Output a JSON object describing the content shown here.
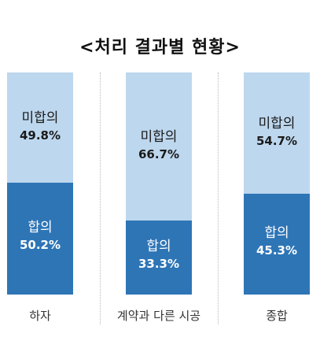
{
  "chart_data": {
    "type": "bar",
    "stacked": true,
    "percent_stacked": true,
    "title": "<처리 결과별 현황>",
    "categories": [
      "하자",
      "계약과 다른 시공",
      "종합"
    ],
    "series": [
      {
        "name": "합의",
        "values": [
          50.2,
          33.3,
          45.3
        ],
        "labels": [
          "50.2%",
          "33.3%",
          "45.3%"
        ],
        "color": "#2e75b6"
      },
      {
        "name": "미합의",
        "values": [
          49.8,
          66.7,
          54.7
        ],
        "labels": [
          "49.8%",
          "66.7%",
          "54.7%"
        ],
        "color": "#bdd7ee"
      }
    ],
    "ylim": [
      0,
      100
    ],
    "grid": false,
    "legend": "none"
  }
}
